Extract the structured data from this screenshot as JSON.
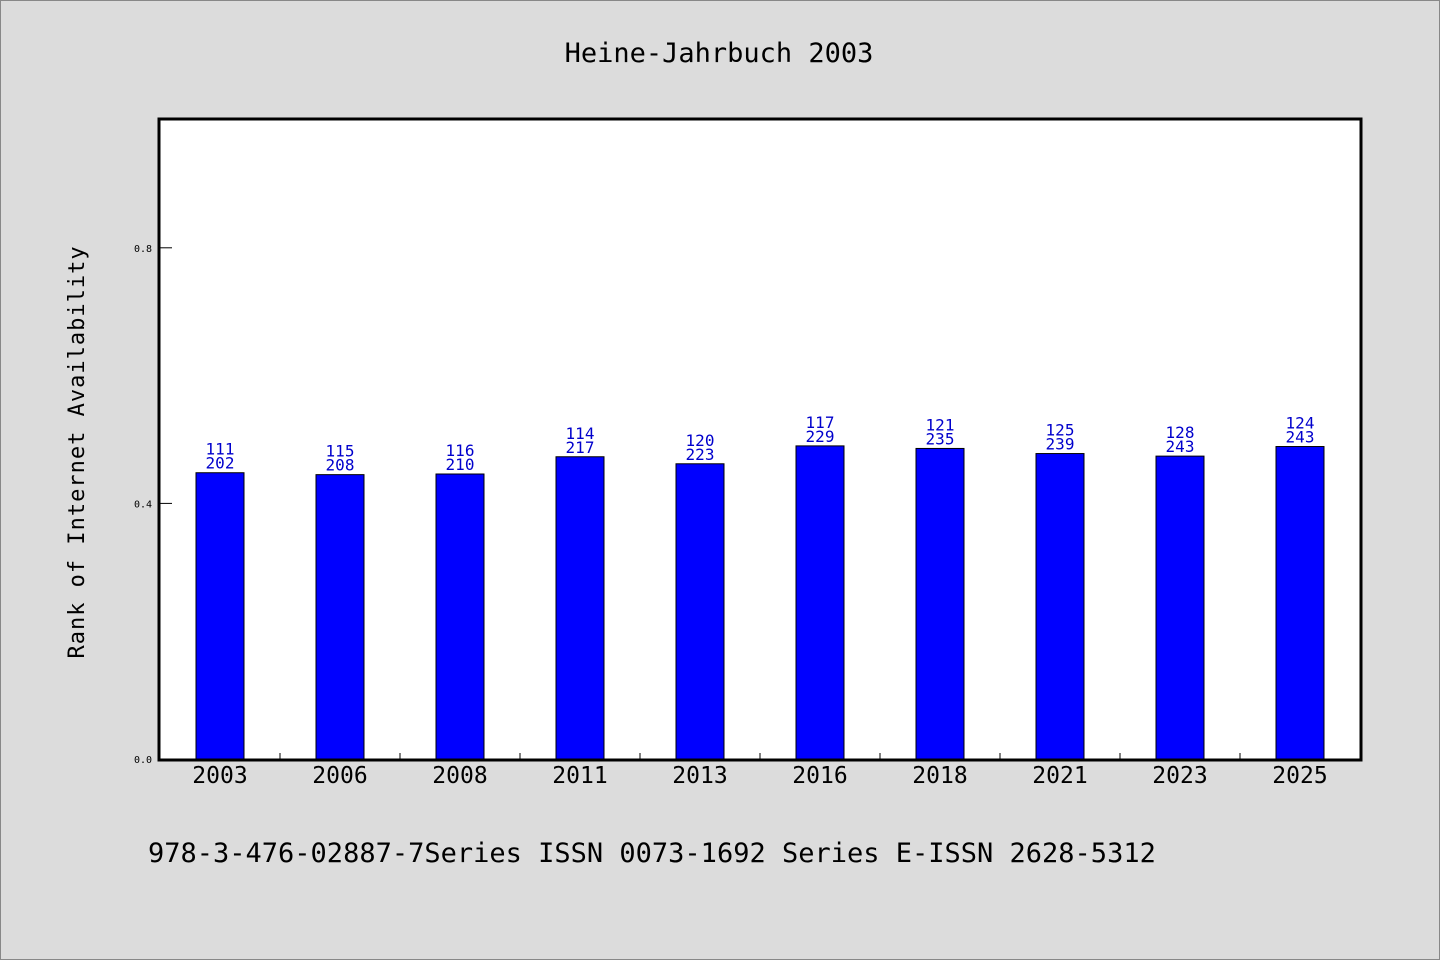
{
  "footer_text": "978-3-476-02887-7Series ISSN 0073-1692 Series E-ISSN 2628-5312",
  "colors": {
    "background": "#dcdcdc",
    "plot_background": "#ffffff",
    "bar": "#0000ff",
    "label": "#0000cc"
  },
  "chart_data": {
    "type": "bar",
    "title": "Heine-Jahrbuch 2003",
    "xlabel": "",
    "ylabel": "Rank of Internet Availability",
    "ylim": [
      0,
      1.0
    ],
    "yticks": [
      0.0,
      0.4,
      0.8
    ],
    "ytick_labels": [
      "0.0",
      "0.4",
      "0.8"
    ],
    "grid": false,
    "categories": [
      "2003",
      "2006",
      "2008",
      "2011",
      "2013",
      "2016",
      "2018",
      "2021",
      "2023",
      "2025"
    ],
    "values": [
      0.448,
      0.445,
      0.446,
      0.473,
      0.462,
      0.49,
      0.486,
      0.478,
      0.474,
      0.489
    ],
    "label_top": [
      "111",
      "115",
      "116",
      "114",
      "120",
      "117",
      "121",
      "125",
      "128",
      "124"
    ],
    "label_bottom": [
      "202",
      "208",
      "210",
      "217",
      "223",
      "229",
      "235",
      "239",
      "243",
      "243"
    ]
  }
}
